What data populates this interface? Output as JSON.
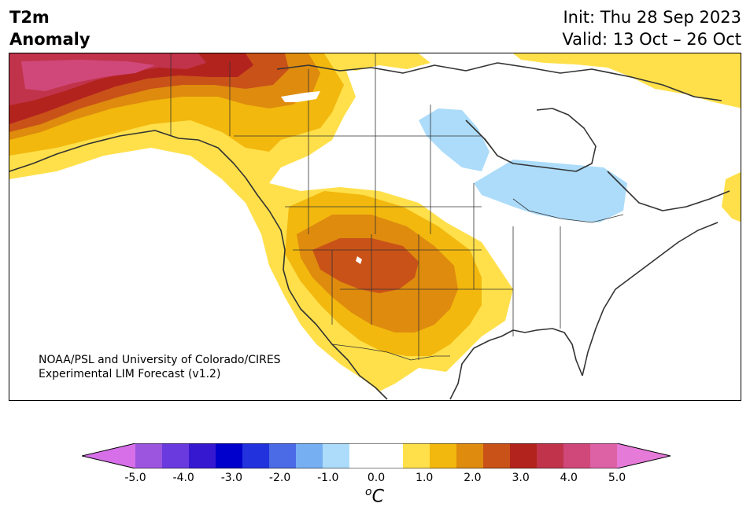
{
  "header": {
    "title_line1": "T2m",
    "title_line2": "Anomaly",
    "init_text": "Init: Thu 28 Sep 2023",
    "valid_text": "Valid: 13 Oct – 26 Oct"
  },
  "credit": {
    "line1": "NOAA/PSL and University of Colorado/CIRES",
    "line2": "Experimental LIM Forecast (v1.2)"
  },
  "colorbar": {
    "unit_base": "C",
    "unit_sup": "o",
    "tick_labels": [
      "-5.0",
      "-4.0",
      "-3.0",
      "-2.0",
      "-1.0",
      "0.0",
      "1.0",
      "2.0",
      "3.0",
      "4.0",
      "5.0"
    ],
    "under_color": "#d66fe8",
    "over_color": "#e67ad8",
    "colors": [
      "#9b55de",
      "#6a3ade",
      "#3518cf",
      "#0000cc",
      "#2233dd",
      "#4a6ae6",
      "#77b0f2",
      "#acdcfa",
      "#ffffff",
      "#ffffff",
      "#ffe04a",
      "#f2b80e",
      "#de8b0e",
      "#c95218",
      "#b3231e",
      "#c0334a",
      "#d0487a",
      "#dd62a5"
    ]
  },
  "map_colors": {
    "land_outline": "#333333",
    "yellow": "#ffe04a",
    "gold": "#f2b80e",
    "orange": "#de8b0e",
    "dark_orange": "#c95218",
    "red": "#b3231e",
    "crimson": "#c0334a",
    "pink": "#d0487a",
    "light_blue": "#acdcfa"
  }
}
